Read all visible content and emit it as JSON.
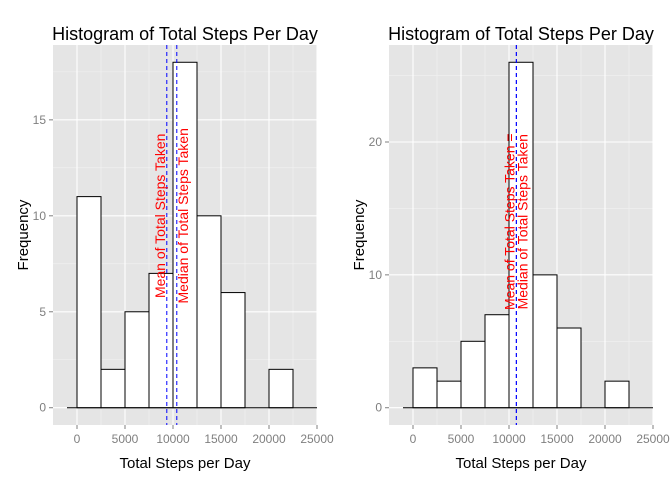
{
  "chart_data": [
    {
      "type": "bar",
      "title": "Histogram of Total Steps Per Day",
      "xlabel": "Total Steps per Day",
      "ylabel": "Frequency",
      "bin_width": 2500,
      "bin_starts": [
        0,
        2500,
        5000,
        7500,
        10000,
        12500,
        15000,
        17500,
        20000
      ],
      "values": [
        11,
        2,
        5,
        7,
        18,
        10,
        6,
        0,
        2
      ],
      "x_ticks": [
        0,
        5000,
        10000,
        15000,
        20000,
        25000
      ],
      "x_tick_labels": [
        "0",
        "5000",
        "10000",
        "15000",
        "20000",
        "25000"
      ],
      "y_ticks": [
        0,
        5,
        10,
        15
      ],
      "y_tick_labels": [
        "0",
        "5",
        "10",
        "15"
      ],
      "xlim": [
        -2500,
        25000
      ],
      "ylim": [
        -0.9,
        18.9
      ],
      "baseline_range": [
        -2500,
        25000
      ],
      "grid": true,
      "reference_lines": [
        {
          "value": 9354,
          "text": "Mean of Total Steps Taken",
          "text_y": 10,
          "color": "#0000ff",
          "style": "dashed"
        },
        {
          "value": 10395,
          "text": "Median of Total Steps Taken",
          "text_y": 10,
          "color": "#0000ff",
          "style": "dashed"
        }
      ]
    },
    {
      "type": "bar",
      "title": "Histogram of Total Steps Per Day",
      "xlabel": "Total Steps per Day",
      "ylabel": "Frequency",
      "bin_width": 2500,
      "bin_starts": [
        0,
        2500,
        5000,
        7500,
        10000,
        12500,
        15000,
        17500,
        20000
      ],
      "values": [
        3,
        2,
        5,
        7,
        26,
        10,
        6,
        0,
        2
      ],
      "x_ticks": [
        0,
        5000,
        10000,
        15000,
        20000,
        25000
      ],
      "x_tick_labels": [
        "0",
        "5000",
        "10000",
        "15000",
        "20000",
        "25000"
      ],
      "y_ticks": [
        0,
        10,
        20
      ],
      "y_tick_labels": [
        "0",
        "10",
        "20"
      ],
      "xlim": [
        -2500,
        25000
      ],
      "ylim": [
        -1.3,
        27.3
      ],
      "baseline_range": [
        -2500,
        25000
      ],
      "grid": true,
      "reference_lines": [
        {
          "value": 10766,
          "text": "Mean of Total Steps Taken =",
          "text_y": 14,
          "color": "#0000ff",
          "style": "dashed"
        },
        {
          "value": 10766,
          "text": "Median of Total Steps Taken",
          "text_y": 14,
          "color": "#0000ff",
          "style": "dashed"
        }
      ]
    }
  ]
}
